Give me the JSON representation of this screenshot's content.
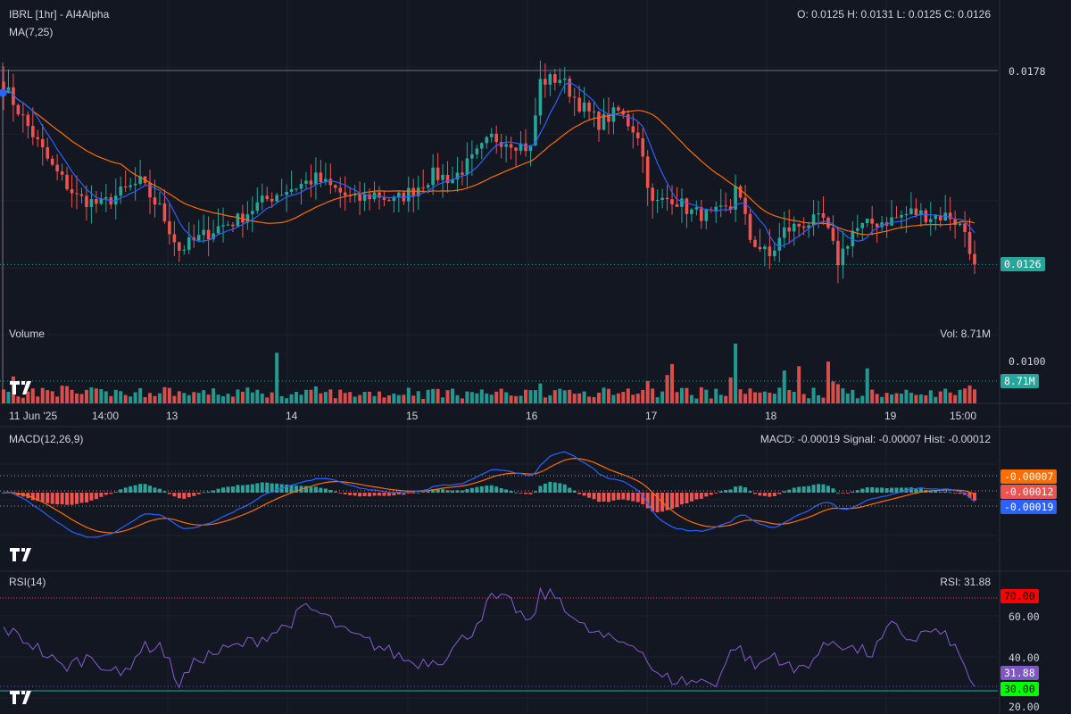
{
  "header": {
    "title": "IBRL [1hr] - AI4Alpha",
    "ohlc": "O: 0.0125 H: 0.0131 L: 0.0125 C: 0.0126",
    "ma_label": "MA(7,25)"
  },
  "volume_panel": {
    "title": "Volume",
    "readout": "Vol: 8.71M"
  },
  "macd_panel": {
    "title": "MACD(12,26,9)",
    "readout": "MACD: -0.00019 Signal: -0.00007 Hist: -0.00012"
  },
  "rsi_panel": {
    "title": "RSI(14)",
    "readout": "RSI: 31.88"
  },
  "x_axis_labels": [
    "11 Jun '25",
    "14:00",
    "13",
    "14",
    "15",
    "16",
    "17",
    "18",
    "19",
    "15:00"
  ],
  "colors": {
    "background": "#131722",
    "up": "#26a69a",
    "down": "#ef5350",
    "ma7": "#2962ff",
    "ma25": "#ff6d00",
    "macd": "#2962ff",
    "signal": "#ff6d00",
    "rsi": "#7e57c2",
    "rsi_upper": "#f23645",
    "rsi_lower": "#22ab94",
    "tag_ob": "#ff0000",
    "tag_os": "#00ff00"
  },
  "chart_data": [
    {
      "type": "candlestick",
      "title": "IBRL [1hr] - AI4Alpha",
      "interval": "1hr",
      "series": [
        {
          "name": "MA(7,25)"
        }
      ],
      "price_axis_labels": [
        "0.0178",
        "0.0126",
        "0.0100"
      ],
      "last_price": 0.0126,
      "reference_price": 0.0178,
      "ohlc_last": {
        "open": 0.0125,
        "high": 0.0131,
        "low": 0.0125,
        "close": 0.0126
      },
      "close_trend": [
        [
          0,
          0.0174
        ],
        [
          5,
          0.0163
        ],
        [
          10,
          0.0152
        ],
        [
          15,
          0.0144
        ],
        [
          20,
          0.0142
        ],
        [
          25,
          0.0146
        ],
        [
          28,
          0.0148
        ],
        [
          32,
          0.0141
        ],
        [
          36,
          0.013
        ],
        [
          40,
          0.0133
        ],
        [
          44,
          0.0136
        ],
        [
          48,
          0.0138
        ],
        [
          52,
          0.0142
        ],
        [
          56,
          0.0145
        ],
        [
          60,
          0.0147
        ],
        [
          64,
          0.0149
        ],
        [
          68,
          0.0146
        ],
        [
          72,
          0.0143
        ],
        [
          76,
          0.0145
        ],
        [
          80,
          0.0143
        ],
        [
          84,
          0.0146
        ],
        [
          88,
          0.015
        ],
        [
          92,
          0.0149
        ],
        [
          96,
          0.0154
        ],
        [
          100,
          0.016
        ],
        [
          104,
          0.0159
        ],
        [
          108,
          0.0157
        ],
        [
          110,
          0.0175
        ],
        [
          114,
          0.0176
        ],
        [
          118,
          0.0169
        ],
        [
          122,
          0.0164
        ],
        [
          126,
          0.0167
        ],
        [
          130,
          0.0161
        ],
        [
          133,
          0.0142
        ],
        [
          137,
          0.0144
        ],
        [
          141,
          0.014
        ],
        [
          145,
          0.0139
        ],
        [
          149,
          0.0141
        ],
        [
          150,
          0.0148
        ],
        [
          153,
          0.0133
        ],
        [
          157,
          0.0128
        ],
        [
          160,
          0.0135
        ],
        [
          164,
          0.0137
        ],
        [
          168,
          0.0138
        ],
        [
          171,
          0.0127
        ],
        [
          174,
          0.0135
        ],
        [
          178,
          0.0137
        ],
        [
          182,
          0.0138
        ],
        [
          186,
          0.014
        ],
        [
          190,
          0.0139
        ],
        [
          194,
          0.0139
        ],
        [
          197,
          0.0135
        ],
        [
          199,
          0.0126
        ]
      ]
    },
    {
      "type": "bar",
      "title": "Volume",
      "volume_axis_labels": [
        "8.71M"
      ],
      "last_volume": "8.71M"
    },
    {
      "type": "line",
      "title": "MACD(12,26,9)",
      "series": [
        {
          "name": "MACD"
        },
        {
          "name": "Signal"
        },
        {
          "name": "Hist"
        }
      ],
      "last": {
        "macd": -0.00019,
        "signal": -7e-05,
        "hist": -0.00012
      },
      "axis_tags": [
        "-0.00007",
        "-0.00012",
        "-0.00019"
      ]
    },
    {
      "type": "line",
      "title": "RSI(14)",
      "series": [
        {
          "name": "RSI",
          "values_note": ""
        }
      ],
      "ylim": [
        20,
        80
      ],
      "y_ticks": [
        "70.00",
        "60.00",
        "40.00",
        "31.88",
        "30.00",
        "20.00"
      ],
      "overbought": 70,
      "oversold": 30,
      "last": 31.88,
      "rsi_trend": [
        [
          0,
          57
        ],
        [
          6,
          50
        ],
        [
          12,
          40
        ],
        [
          18,
          45
        ],
        [
          24,
          36
        ],
        [
          28,
          48
        ],
        [
          32,
          50
        ],
        [
          36,
          33
        ],
        [
          40,
          44
        ],
        [
          46,
          48
        ],
        [
          52,
          52
        ],
        [
          58,
          58
        ],
        [
          62,
          66
        ],
        [
          66,
          62
        ],
        [
          70,
          55
        ],
        [
          76,
          50
        ],
        [
          80,
          46
        ],
        [
          84,
          42
        ],
        [
          90,
          44
        ],
        [
          96,
          56
        ],
        [
          100,
          70
        ],
        [
          104,
          68
        ],
        [
          108,
          58
        ],
        [
          110,
          72
        ],
        [
          114,
          70
        ],
        [
          118,
          58
        ],
        [
          124,
          52
        ],
        [
          130,
          50
        ],
        [
          134,
          36
        ],
        [
          140,
          34
        ],
        [
          146,
          34
        ],
        [
          150,
          50
        ],
        [
          154,
          40
        ],
        [
          158,
          46
        ],
        [
          162,
          38
        ],
        [
          166,
          44
        ],
        [
          170,
          52
        ],
        [
          174,
          48
        ],
        [
          178,
          46
        ],
        [
          182,
          58
        ],
        [
          186,
          52
        ],
        [
          190,
          56
        ],
        [
          194,
          52
        ],
        [
          197,
          40
        ],
        [
          199,
          31.88
        ]
      ]
    }
  ]
}
